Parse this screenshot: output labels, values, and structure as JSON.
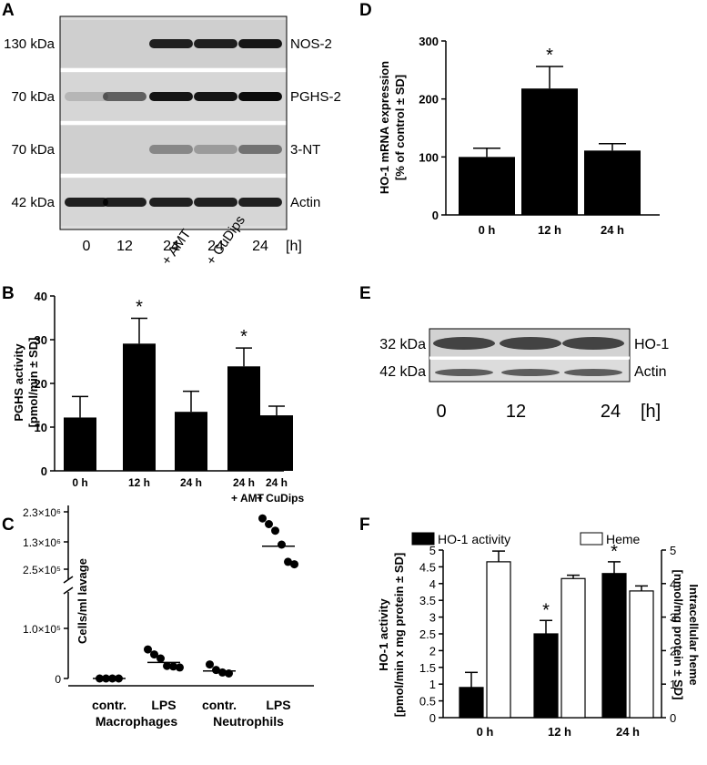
{
  "panels": {
    "A": "A",
    "B": "B",
    "C": "C",
    "D": "D",
    "E": "E",
    "F": "F"
  },
  "chart_data": [
    {
      "panel": "A",
      "type": "blot",
      "rows": [
        {
          "size": "130 kDa",
          "protein": "NOS-2",
          "bands": [
            0,
            0,
            0.85,
            0.85,
            0.9
          ]
        },
        {
          "size": "70 kDa",
          "protein": "PGHS-2",
          "bands": [
            0.15,
            0.55,
            0.9,
            0.9,
            0.95
          ]
        },
        {
          "size": "70 kDa",
          "protein": "3-NT",
          "bands": [
            0,
            0,
            0.35,
            0.25,
            0.45
          ]
        },
        {
          "size": "42 kDa",
          "protein": "Actin",
          "bands": [
            0.85,
            0.85,
            0.85,
            0.85,
            0.85
          ]
        }
      ],
      "lanes": [
        "0",
        "12",
        "24",
        "24",
        "24"
      ],
      "lane_notes": [
        "",
        "",
        "",
        "+ AMT",
        "+ CuDips"
      ],
      "unit": "[h]"
    },
    {
      "panel": "B",
      "type": "bar",
      "categories": [
        "0 h",
        "12 h",
        "24 h",
        "24 h",
        "24 h"
      ],
      "category_sub": [
        "",
        "",
        "",
        "+ AMT",
        "+ CuDips"
      ],
      "values": [
        12.2,
        29.1,
        13.5,
        23.9,
        12.7
      ],
      "errors": [
        4.8,
        5.8,
        4.7,
        4.2,
        2.1
      ],
      "significant": [
        false,
        true,
        false,
        true,
        false
      ],
      "ylabel": "PGHS activity",
      "ylabel2": "[pmol/min ± SD]",
      "ylim": [
        0,
        40
      ],
      "yticks": [
        "0",
        "10",
        "20",
        "30",
        "40"
      ],
      "star": "*"
    },
    {
      "panel": "C",
      "type": "scatter",
      "ylabel": "Cells/ml lavage",
      "yticks": [
        "0",
        "1.0×10⁵",
        "2.5×10⁵",
        "1.3×10⁶",
        "2.3×10⁶"
      ],
      "groups": [
        {
          "label": "contr.",
          "points": [
            0.0,
            0.0,
            0.0,
            0.0
          ],
          "median": 0.0
        },
        {
          "label": "LPS",
          "points": [
            0.58,
            0.48,
            0.4,
            0.25,
            0.24,
            0.22
          ],
          "median": 0.32
        },
        {
          "label": "contr.",
          "points": [
            0.28,
            0.17,
            0.12,
            0.1
          ],
          "median": 0.15
        },
        {
          "label": "LPS",
          "points": [
            2.62,
            2.55,
            2.47,
            2.3,
            2.09,
            2.06
          ],
          "median": 2.28
        }
      ],
      "group_labels": [
        "Macrophages",
        "Neutrophils"
      ]
    },
    {
      "panel": "D",
      "type": "bar",
      "categories": [
        "0 h",
        "12 h",
        "24 h"
      ],
      "values": [
        100,
        218,
        111
      ],
      "errors": [
        15,
        38,
        12
      ],
      "significant": [
        false,
        true,
        false
      ],
      "ylabel": "HO-1 mRNA expression",
      "ylabel2": "[% of control ± SD]",
      "ylim": [
        0,
        300
      ],
      "yticks": [
        "0",
        "100",
        "200",
        "300"
      ],
      "star": "*"
    },
    {
      "panel": "E",
      "type": "blot",
      "rows": [
        {
          "size": "32 kDa",
          "protein": "HO-1"
        },
        {
          "size": "42 kDa",
          "protein": "Actin"
        }
      ],
      "lanes": [
        "0",
        "12",
        "24"
      ],
      "unit": "[h]"
    },
    {
      "panel": "F",
      "type": "bar",
      "categories": [
        "0 h",
        "12 h",
        "24 h"
      ],
      "series": [
        {
          "name": "HO-1 activity",
          "values": [
            0.9,
            2.5,
            4.3
          ],
          "errors": [
            0.45,
            0.4,
            0.35
          ],
          "significant": [
            false,
            true,
            true
          ],
          "color": "#000000"
        },
        {
          "name": "Heme",
          "values": [
            4.65,
            4.15,
            3.78
          ],
          "errors": [
            0.32,
            0.1,
            0.15
          ],
          "significant": [
            false,
            false,
            false
          ],
          "color": "#ffffff"
        }
      ],
      "ylabel": "HO-1 activity",
      "ylabel2": "[pmol/min x mg protein ± SD]",
      "y2label": "Intracellular heme",
      "y2label2": "[nmol/mg protein ± SD]",
      "ylim": [
        0,
        5
      ],
      "yticks": [
        "0",
        "0.5",
        "1",
        "1.5",
        "2",
        "2.5",
        "3",
        "3.5",
        "4",
        "4.5",
        "5"
      ],
      "y2ticks": [
        "0",
        "1",
        "2",
        "3",
        "4",
        "5"
      ],
      "star": "*"
    }
  ]
}
